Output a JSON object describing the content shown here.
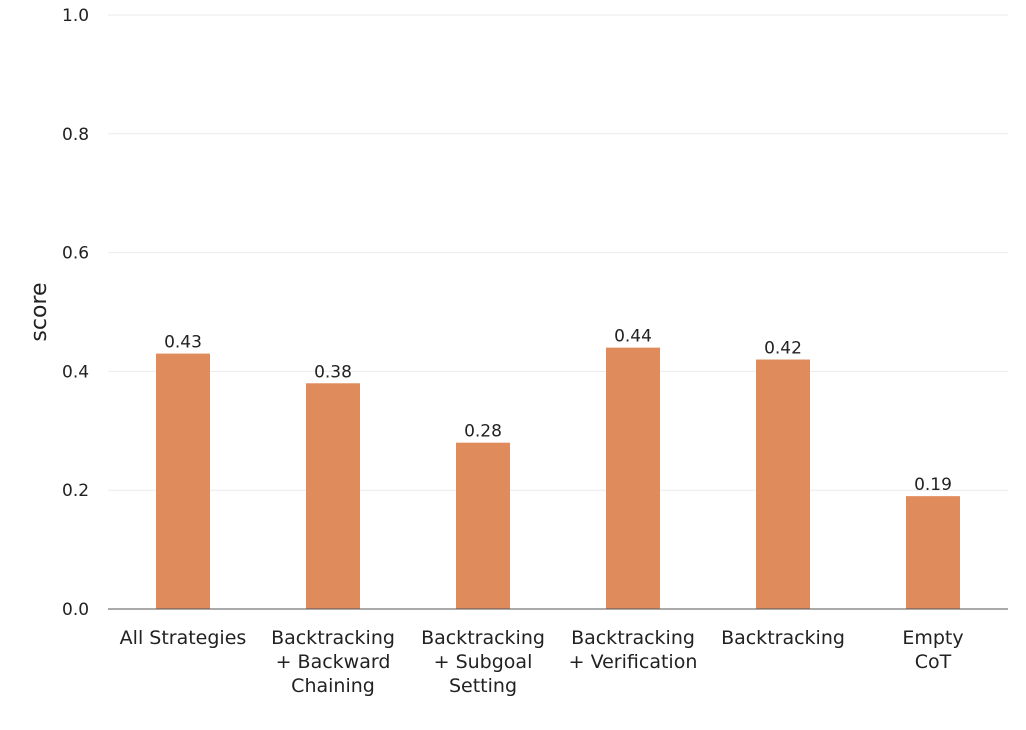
{
  "chart_data": {
    "type": "bar",
    "categories": [
      "All Strategies",
      "Backtracking\n+ Backward\nChaining",
      "Backtracking\n+ Subgoal\nSetting",
      "Backtracking\n+ Verification",
      "Backtracking",
      "Empty\nCoT"
    ],
    "values": [
      0.43,
      0.38,
      0.28,
      0.44,
      0.42,
      0.19
    ],
    "data_labels": [
      "0.43",
      "0.38",
      "0.28",
      "0.44",
      "0.42",
      "0.19"
    ],
    "ylabel": "score",
    "ylim": [
      0,
      1.0
    ],
    "yticks": [
      "0.0",
      "0.2",
      "0.4",
      "0.6",
      "0.8",
      "1.0"
    ],
    "grid": true,
    "bar_color": "#e08b5c"
  }
}
